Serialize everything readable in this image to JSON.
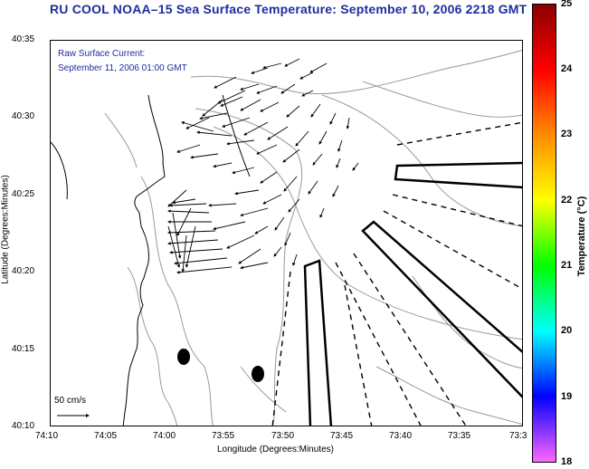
{
  "title": "RU COOL  NOAA–15  Sea Surface Temperature:  September 10, 2006 2218 GMT",
  "annotation": {
    "line1": "Raw Surface Current:",
    "line2": "September 11, 2006 01:00 GMT"
  },
  "scale": {
    "label": "50 cm/s"
  },
  "x_axis": {
    "title": "Longitude (Degrees:Minutes)",
    "ticks": [
      "74:10",
      "74:05",
      "74:00",
      "73:55",
      "73:50",
      "73:45",
      "73:40",
      "73:35",
      "73:3"
    ]
  },
  "y_axis": {
    "title": "Latitude (Degrees:Minutes)",
    "ticks": [
      "40:35",
      "40:30",
      "40:25",
      "40:20",
      "40:15",
      "40:10"
    ]
  },
  "colorbar": {
    "title": "Temperature (°C)",
    "ticks": [
      "25",
      "24",
      "23",
      "22",
      "21",
      "20",
      "19",
      "18"
    ],
    "colors": [
      "#8b0000",
      "#ff0000",
      "#ff8c00",
      "#ffff00",
      "#00ff00",
      "#00ffff",
      "#0000ff",
      "#ff66ff"
    ]
  },
  "colors": {
    "title": "#1f2c9f",
    "contour": "#999999",
    "coast": "#000000"
  }
}
